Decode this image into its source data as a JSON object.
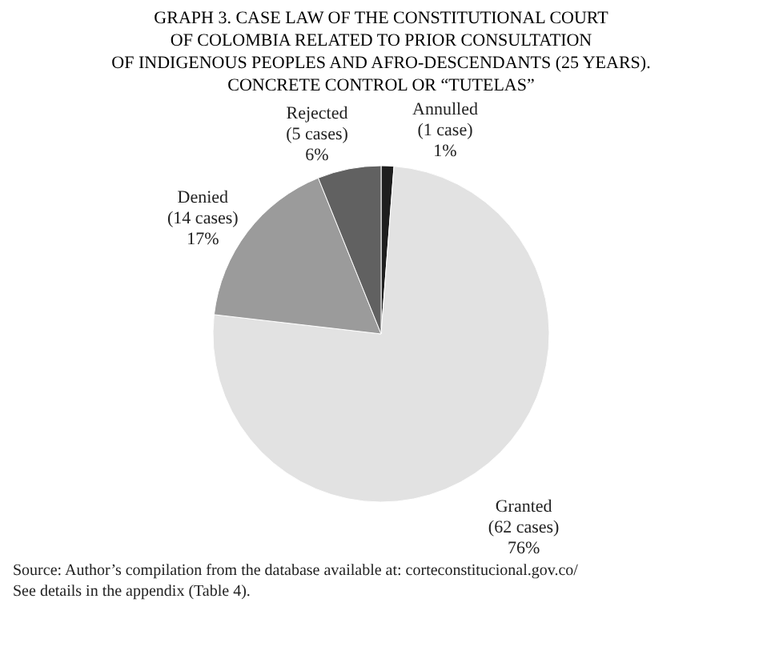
{
  "chart_data": {
    "type": "pie",
    "title": [
      "GRAPH 3. CASE LAW OF THE CONSTITUTIONAL COURT",
      "OF COLOMBIA RELATED TO PRIOR CONSULTATION",
      "OF INDIGENOUS PEOPLES AND AFRO-DESCENDANTS (25 YEARS).",
      "CONCRETE CONTROL OR “TUTELAS”"
    ],
    "categories": [
      "Annulled",
      "Granted",
      "Denied",
      "Rejected"
    ],
    "values": [
      1,
      62,
      14,
      5
    ],
    "colors": [
      "#1e1e1e",
      "#e2e2e2",
      "#9b9b9b",
      "#616161"
    ],
    "value_labels": [
      "(1 case)\n1%",
      "(62 cases)\n76%",
      "(14 cases)\n17%",
      "(5 cases)\n6%"
    ],
    "legend": false,
    "annotations": [
      "Source: Author’s compilation from the database available at: corteconstitucional.gov.co/",
      "See details in the appendix (Table 4)."
    ]
  }
}
